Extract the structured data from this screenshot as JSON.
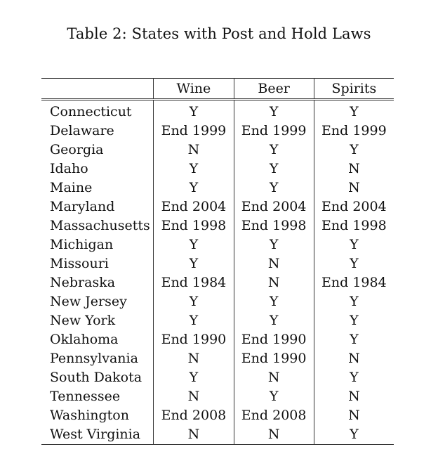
{
  "caption": "Table 2: States with Post and Hold Laws",
  "columns": [
    "Wine",
    "Beer",
    "Spirits"
  ],
  "rows": [
    {
      "state": "Connecticut",
      "wine": "Y",
      "beer": "Y",
      "spirits": "Y"
    },
    {
      "state": "Delaware",
      "wine": "End 1999",
      "beer": "End 1999",
      "spirits": "End 1999"
    },
    {
      "state": "Georgia",
      "wine": "N",
      "beer": "Y",
      "spirits": "Y"
    },
    {
      "state": "Idaho",
      "wine": "Y",
      "beer": "Y",
      "spirits": "N"
    },
    {
      "state": "Maine",
      "wine": "Y",
      "beer": "Y",
      "spirits": "N"
    },
    {
      "state": "Maryland",
      "wine": "End 2004",
      "beer": "End 2004",
      "spirits": "End 2004"
    },
    {
      "state": "Massachusetts",
      "wine": "End 1998",
      "beer": "End 1998",
      "spirits": "End 1998"
    },
    {
      "state": "Michigan",
      "wine": "Y",
      "beer": "Y",
      "spirits": "Y"
    },
    {
      "state": "Missouri",
      "wine": "Y",
      "beer": "N",
      "spirits": "Y"
    },
    {
      "state": "Nebraska",
      "wine": "End 1984",
      "beer": "N",
      "spirits": "End 1984"
    },
    {
      "state": "New Jersey",
      "wine": "Y",
      "beer": "Y",
      "spirits": "Y"
    },
    {
      "state": "New York",
      "wine": "Y",
      "beer": "Y",
      "spirits": "Y"
    },
    {
      "state": "Oklahoma",
      "wine": "End 1990",
      "beer": "End 1990",
      "spirits": "Y"
    },
    {
      "state": "Pennsylvania",
      "wine": "N",
      "beer": "End 1990",
      "spirits": "N"
    },
    {
      "state": "South Dakota",
      "wine": "Y",
      "beer": "N",
      "spirits": "Y"
    },
    {
      "state": "Tennessee",
      "wine": "N",
      "beer": "Y",
      "spirits": "N"
    },
    {
      "state": "Washington",
      "wine": "End 2008",
      "beer": "End 2008",
      "spirits": "N"
    },
    {
      "state": "West Virginia",
      "wine": "N",
      "beer": "N",
      "spirits": "Y"
    }
  ]
}
